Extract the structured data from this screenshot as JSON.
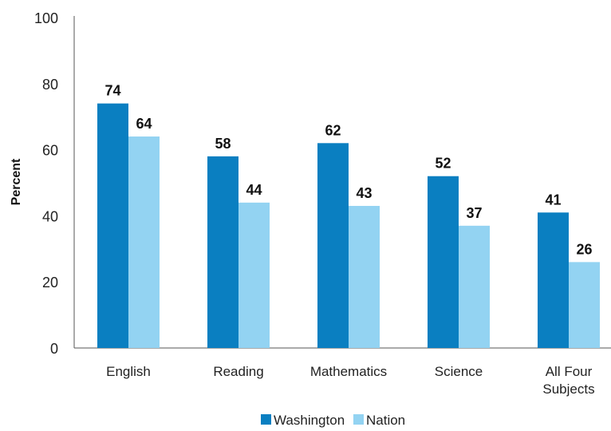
{
  "chart_data": {
    "type": "bar",
    "categories": [
      "English",
      "Reading",
      "Mathematics",
      "Science",
      "All Four\nSubjects"
    ],
    "series": [
      {
        "name": "Washington",
        "values": [
          74,
          58,
          62,
          52,
          41
        ],
        "color": "#0a7fc1"
      },
      {
        "name": "Nation",
        "values": [
          64,
          44,
          43,
          37,
          26
        ],
        "color": "#93d3f2"
      }
    ],
    "ylabel": "Percent",
    "ylim": [
      0,
      100
    ],
    "yticks": [
      0,
      20,
      40,
      60,
      80,
      100
    ],
    "grid": false,
    "legend_position": "bottom"
  }
}
